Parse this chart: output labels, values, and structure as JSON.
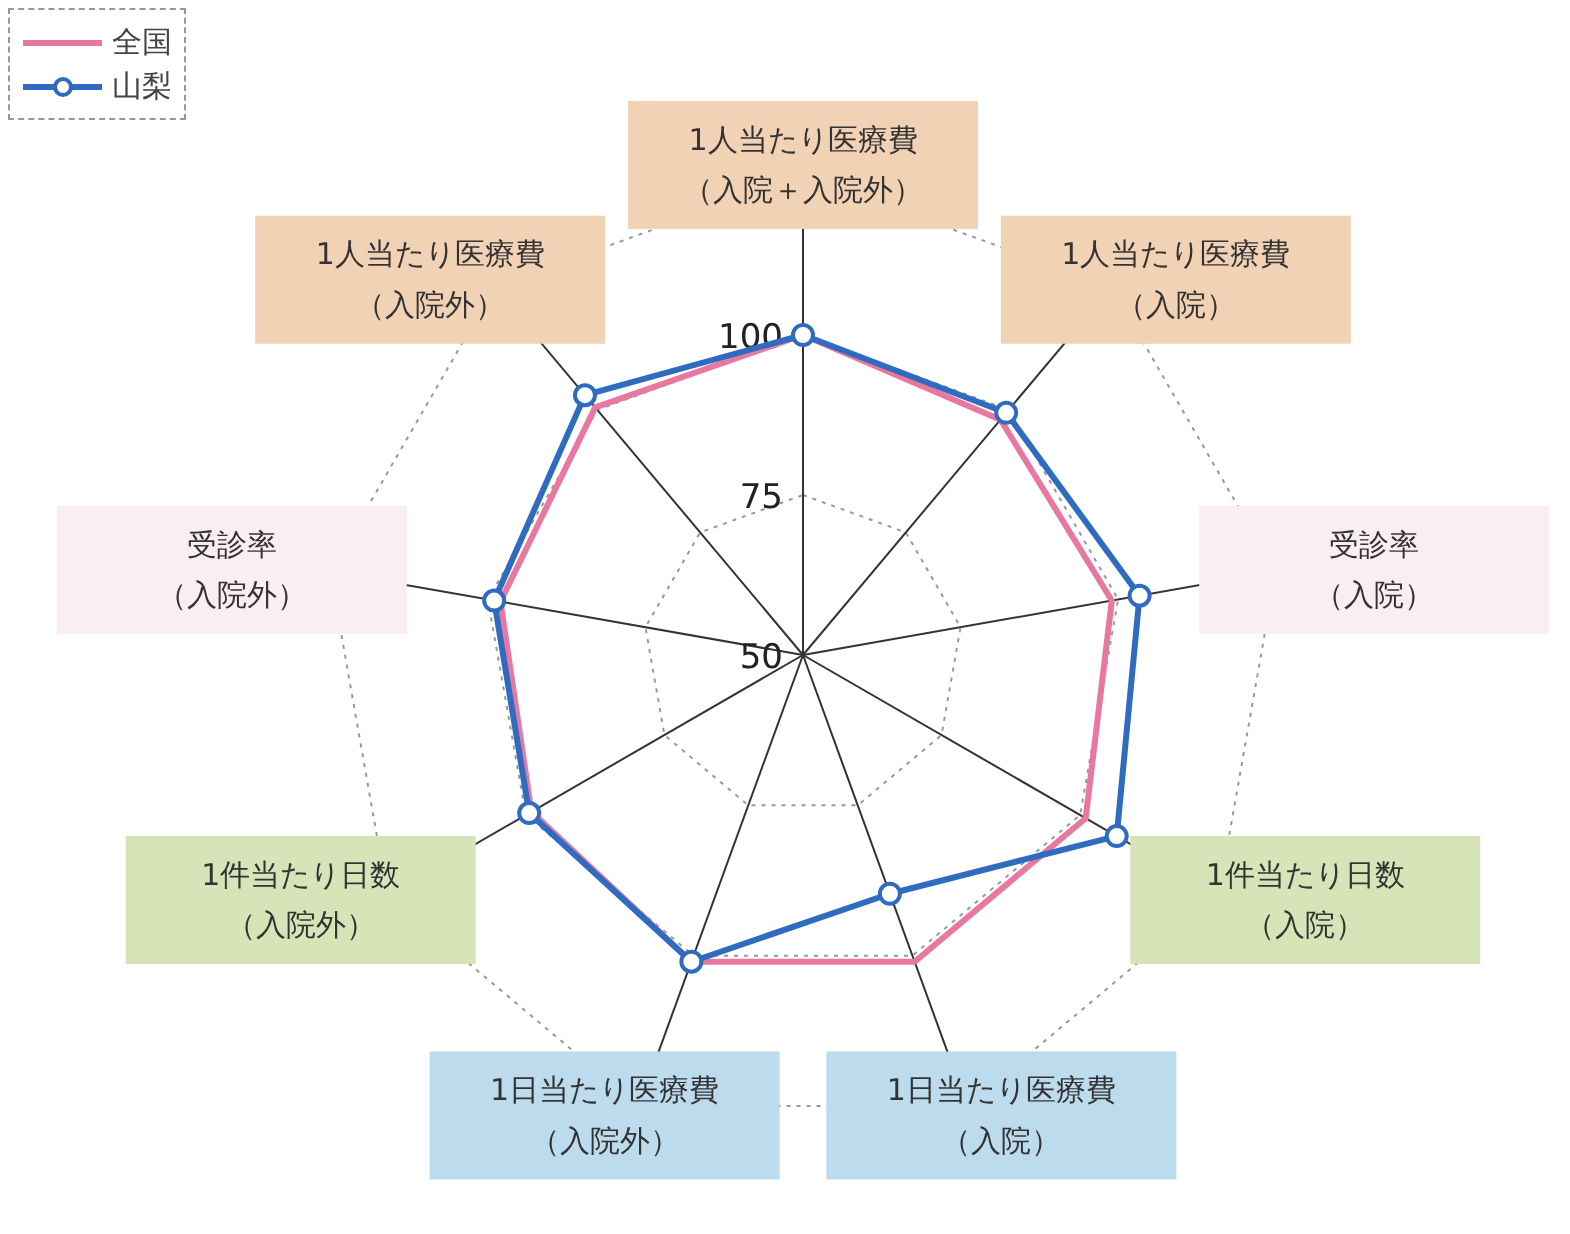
{
  "chart_data": {
    "type": "radar",
    "categories": [
      "1人当たり医療費（入院＋入院外）",
      "1人当たり医療費（入院）",
      "受診率（入院）",
      "1件当たり日数（入院）",
      "1日当たり医療費（入院）",
      "1日当たり医療費（入院外）",
      "1件当たり日数（入院外）",
      "受診率（入院外）",
      "1人当たり医療費（入院外）"
    ],
    "series": [
      {
        "name": "全国",
        "color": "#e8789f",
        "marker": "none",
        "values": [
          100,
          98,
          99,
          101,
          101,
          101,
          99,
          98,
          100.5
        ]
      },
      {
        "name": "山梨",
        "color": "#2f6cc0",
        "marker": "circle",
        "values": [
          100,
          99.4,
          103.4,
          106.6,
          89.7,
          101,
          99.4,
          99,
          103
        ]
      }
    ],
    "ylim": [
      50,
      125
    ],
    "yticks": [
      50,
      75,
      100
    ],
    "grid": true,
    "legend": "top left"
  }
}
